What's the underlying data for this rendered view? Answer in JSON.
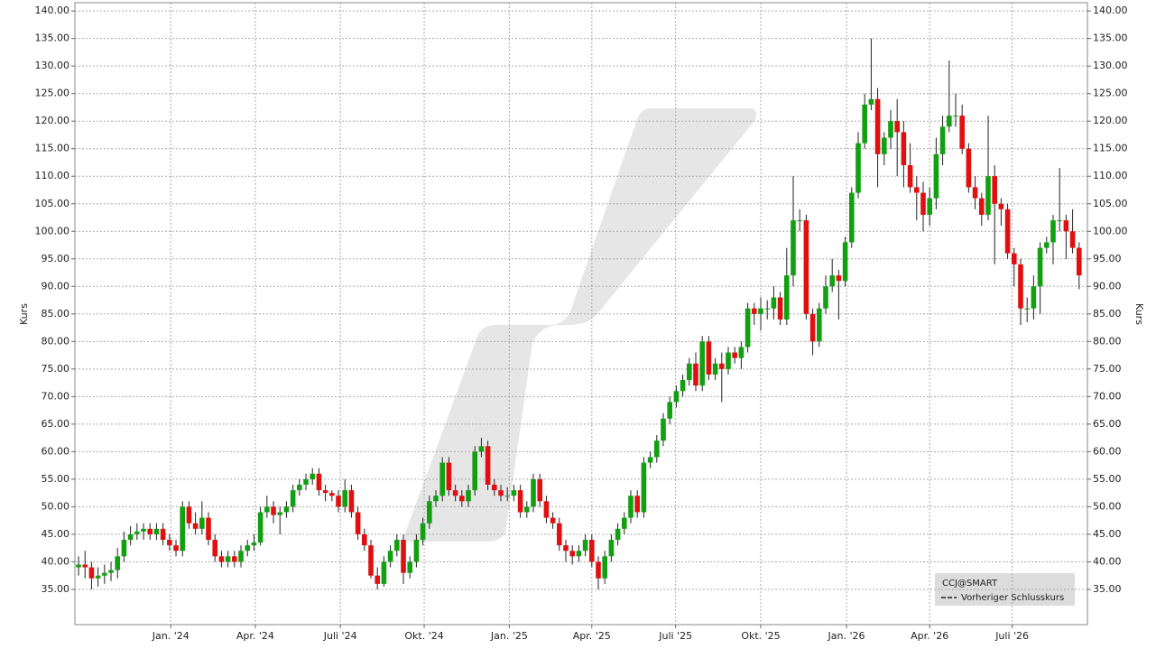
{
  "chart_data": {
    "type": "candlestick",
    "y_label": "Kurs",
    "series": [
      {
        "name": "CCJ@SMART",
        "up_color": "#10a010",
        "down_color": "#e01010",
        "x": [
          0,
          1,
          2,
          3,
          4,
          5,
          6,
          7,
          8,
          9,
          10,
          11,
          12,
          13,
          14,
          15,
          16,
          17,
          18,
          19,
          20,
          21,
          22,
          23,
          24,
          25,
          26,
          27,
          28,
          29,
          30,
          31,
          32,
          33,
          34,
          35,
          36,
          37,
          38,
          39,
          40,
          41,
          42,
          43,
          44,
          45,
          46,
          47,
          48,
          49,
          50,
          51,
          52,
          53,
          54,
          55,
          56,
          57,
          58,
          59,
          60,
          61,
          62,
          63,
          64,
          65,
          66,
          67,
          68,
          69,
          70,
          71,
          72,
          73,
          74,
          75,
          76,
          77,
          78,
          79,
          80,
          81,
          82,
          83,
          84,
          85,
          86,
          87,
          88,
          89,
          90,
          91,
          92,
          93,
          94,
          95,
          96,
          97,
          98,
          99,
          100,
          101,
          102,
          103,
          104,
          105,
          106,
          107,
          108,
          109,
          110,
          111,
          112,
          113,
          114,
          115,
          116,
          117,
          118,
          119,
          120,
          121,
          122,
          123,
          124,
          125,
          126,
          127,
          128,
          129,
          130,
          131,
          132,
          133,
          134,
          135,
          136,
          137,
          138,
          139,
          140,
          141,
          142,
          143,
          144,
          145,
          146,
          147,
          148,
          149,
          150,
          151,
          152,
          153,
          154
        ],
        "open": [
          39,
          39.5,
          39,
          37,
          37.5,
          38,
          38.5,
          41,
          44,
          45,
          45.5,
          46,
          45,
          46,
          44,
          43,
          42,
          50,
          47,
          46,
          48,
          44,
          41,
          40,
          41,
          40,
          42,
          43,
          43.5,
          49,
          50,
          48.5,
          49,
          50,
          53,
          54,
          55,
          56,
          53,
          52.5,
          52,
          50,
          53,
          49,
          45,
          43,
          37.5,
          36,
          40,
          42,
          44,
          38,
          40,
          44,
          47,
          51,
          52,
          58,
          53,
          52,
          51,
          53,
          60,
          61,
          54,
          53,
          52,
          52,
          53,
          49,
          50,
          55,
          51,
          48,
          47,
          43,
          42,
          41,
          42,
          44,
          40,
          37,
          41,
          44,
          46,
          48,
          52,
          49,
          58,
          59,
          62,
          66,
          69,
          71,
          73,
          76,
          72,
          80,
          74,
          76,
          75,
          78,
          77,
          79,
          86,
          85,
          86,
          86,
          88,
          84,
          92,
          102,
          102,
          85,
          80,
          86,
          90,
          92,
          91,
          98,
          107,
          116,
          123,
          124,
          114,
          117,
          120,
          118,
          112,
          108,
          107,
          103,
          106,
          114,
          119,
          121,
          121,
          115,
          108,
          106,
          103,
          110,
          105,
          104,
          96,
          94,
          86,
          86,
          90,
          97,
          98,
          102,
          102,
          100,
          97
        ],
        "high": [
          41,
          42,
          40,
          39,
          39.5,
          40,
          42.5,
          45.5,
          46.5,
          47,
          47,
          47,
          47,
          47,
          45,
          44,
          51,
          51,
          49,
          51,
          49,
          45,
          42,
          42,
          42,
          43,
          44,
          45,
          50,
          52,
          51,
          50,
          51,
          54,
          55,
          56,
          57,
          57,
          54,
          53,
          53,
          55,
          54,
          50,
          46,
          44,
          39,
          41,
          43,
          45,
          45,
          41,
          45,
          48,
          52,
          53,
          59,
          59,
          54,
          53,
          54,
          61,
          62.5,
          62,
          55,
          54,
          53.5,
          54,
          54,
          51,
          56,
          56,
          52,
          49,
          48,
          44,
          43,
          43,
          45,
          45,
          41,
          42,
          45,
          47,
          49,
          53,
          53,
          59,
          60,
          63,
          67,
          70,
          72,
          74,
          77,
          78,
          81,
          81,
          77,
          78,
          79,
          79,
          80,
          87,
          87,
          88,
          87.5,
          90,
          89,
          97,
          110,
          104,
          103,
          86,
          87,
          92,
          95,
          93,
          99,
          108,
          118,
          125,
          135,
          126,
          118,
          122,
          124,
          120,
          116,
          110,
          109,
          108,
          117,
          121,
          131,
          125,
          123,
          116,
          110,
          107,
          121,
          112,
          106,
          105,
          97,
          95,
          88,
          92,
          98,
          99,
          103,
          111.5,
          103,
          104,
          98
        ],
        "low": [
          37.5,
          37,
          35,
          35.5,
          36,
          36.5,
          37,
          40,
          43,
          44,
          44,
          44,
          44,
          43,
          42,
          41,
          41,
          46,
          45,
          45,
          43,
          40,
          39,
          39,
          39,
          39,
          41,
          42,
          43,
          48,
          47,
          45,
          48,
          49,
          52,
          53,
          54,
          52,
          51,
          51,
          49,
          49,
          48,
          44,
          42,
          37,
          35,
          35.5,
          39,
          41,
          36,
          37,
          39,
          43,
          46,
          50,
          51,
          52,
          51,
          50,
          50,
          52,
          59,
          53,
          52,
          51,
          51,
          51,
          48,
          48,
          49,
          50,
          47,
          46,
          42,
          40,
          39.5,
          40,
          41,
          39,
          35,
          36,
          40,
          43,
          45,
          47,
          48,
          48,
          57,
          58,
          61,
          65,
          68,
          70,
          72,
          71,
          71,
          73,
          73,
          69,
          74,
          76,
          75,
          78,
          83,
          82,
          84,
          84,
          83,
          83,
          90,
          100,
          84,
          77.5,
          79,
          85,
          89,
          84,
          90,
          97,
          106,
          115,
          122,
          108,
          112,
          115,
          110,
          108,
          107,
          102,
          100,
          101,
          104,
          112,
          118,
          119,
          114,
          107,
          104,
          101,
          102,
          94,
          101,
          95,
          90,
          83,
          83.5,
          84,
          85,
          96,
          94,
          100,
          95,
          96,
          89.5
        ],
        "close": [
          39.5,
          39,
          37,
          37.5,
          38,
          38.5,
          41,
          44,
          45,
          45.5,
          46,
          45,
          46,
          44,
          43,
          42,
          50,
          47,
          46,
          48,
          44,
          41,
          40,
          41,
          40,
          42,
          43,
          43.5,
          49,
          50,
          48.5,
          49,
          50,
          53,
          54,
          55,
          56,
          53,
          52.5,
          52,
          50,
          53,
          49,
          45,
          43,
          37.5,
          36,
          40,
          42,
          44,
          38,
          40,
          44,
          47,
          51,
          52,
          58,
          53,
          52,
          51,
          53,
          60,
          61,
          54,
          53,
          52,
          52,
          53,
          49,
          50,
          55,
          51,
          48,
          47,
          43,
          42,
          41,
          42,
          44,
          40,
          37,
          41,
          44,
          46,
          48,
          52,
          49,
          58,
          59,
          62,
          66,
          69,
          71,
          73,
          76,
          72,
          80,
          74,
          76,
          75,
          78,
          77,
          79,
          86,
          85,
          86,
          86,
          88,
          84,
          92,
          102,
          102,
          85,
          80,
          86,
          90,
          92,
          91,
          98,
          107,
          116,
          123,
          124,
          114,
          117,
          120,
          118,
          112,
          108,
          107,
          103,
          106,
          114,
          119,
          121,
          121,
          115,
          108,
          106,
          103,
          110,
          105,
          104,
          96,
          94,
          86,
          86,
          90,
          97,
          98,
          102,
          102,
          100,
          97,
          92
        ]
      }
    ],
    "reference_label": "Vorheriger Schlusskurs",
    "xlim": [
      -0.56,
      155.28
    ],
    "xticks": [
      {
        "value": 14.2,
        "label": "Jan. '24"
      },
      {
        "value": 27.2,
        "label": "Apr. '24"
      },
      {
        "value": 40.3,
        "label": "Juli '24"
      },
      {
        "value": 53.2,
        "label": "Okt. '24"
      },
      {
        "value": 66.3,
        "label": "Jan. '25"
      },
      {
        "value": 79.0,
        "label": "Apr. '25"
      },
      {
        "value": 91.9,
        "label": "Juli '25"
      },
      {
        "value": 105.0,
        "label": "Okt. '25"
      },
      {
        "value": 118.2,
        "label": "Jan. '26"
      },
      {
        "value": 131.0,
        "label": "Apr. '26"
      },
      {
        "value": 143.7,
        "label": "Juli '26"
      }
    ],
    "ylim": [
      28.6,
      141.5
    ],
    "yticks": [
      {
        "value": 35,
        "label": "35.00"
      },
      {
        "value": 40,
        "label": "40.00"
      },
      {
        "value": 45,
        "label": "45.00"
      },
      {
        "value": 50,
        "label": "50.00"
      },
      {
        "value": 55,
        "label": "55.00"
      },
      {
        "value": 60,
        "label": "60.00"
      },
      {
        "value": 65,
        "label": "65.00"
      },
      {
        "value": 70,
        "label": "70.00"
      },
      {
        "value": 75,
        "label": "75.00"
      },
      {
        "value": 80,
        "label": "80.00"
      },
      {
        "value": 85,
        "label": "85.00"
      },
      {
        "value": 90,
        "label": "90.00"
      },
      {
        "value": 95,
        "label": "95.00"
      },
      {
        "value": 100,
        "label": "100.00"
      },
      {
        "value": 105,
        "label": "105.00"
      },
      {
        "value": 110,
        "label": "110.00"
      },
      {
        "value": 115,
        "label": "115.00"
      },
      {
        "value": 120,
        "label": "120.00"
      },
      {
        "value": 125,
        "label": "125.00"
      },
      {
        "value": 130,
        "label": "130.00"
      },
      {
        "value": 135,
        "label": "135.00"
      },
      {
        "value": 140,
        "label": "140.00"
      }
    ],
    "grid": true
  }
}
